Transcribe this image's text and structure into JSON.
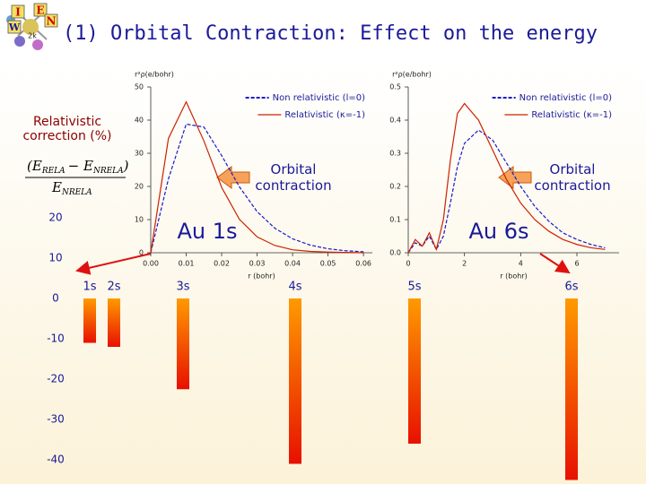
{
  "title": "(1) Orbital Contraction: Effect on the energy",
  "logo": [
    "I",
    "E",
    "N",
    "W",
    "2k"
  ],
  "chart_data": [
    {
      "type": "bar",
      "y_title": "Relativistic correction (%)",
      "formula": {
        "numerator": [
          "(E",
          "RELA",
          "− E",
          "NRELA",
          ")"
        ],
        "denominator": [
          "E",
          "NRELA"
        ]
      },
      "categories": [
        "1s",
        "2s",
        "3s",
        "4s",
        "5s",
        "6s"
      ],
      "values": [
        -11,
        -12,
        -22.5,
        -41,
        -36,
        -45
      ],
      "colors": [
        "#ff9a00",
        "#e81000"
      ],
      "ylim": [
        -45,
        26
      ],
      "yticks": [
        20,
        10,
        0,
        -10,
        -20,
        -30,
        -40
      ]
    },
    {
      "type": "line",
      "y_title": "r²ρ(e/bohr)",
      "x_title": "r (bohr)",
      "note": "Orbital contraction",
      "label": "Au 1s",
      "legend": "top-right",
      "x": [
        0,
        0.005,
        0.01,
        0.015,
        0.02,
        0.025,
        0.03,
        0.035,
        0.04,
        0.045,
        0.05,
        0.055,
        0.06
      ],
      "series": [
        {
          "name": "Non relativistic (l=0)",
          "color": "#1a1acc",
          "dash": true,
          "values": [
            0,
            22.3,
            38.8,
            37.9,
            29.3,
            19.9,
            12.4,
            7.4,
            4.2,
            2.3,
            1.2,
            0.6,
            0.3
          ]
        },
        {
          "name": "Relativistic (κ=-1)",
          "color": "#cc2200",
          "dash": false,
          "values": [
            0,
            34.5,
            45.5,
            33.7,
            19.7,
            10.1,
            4.8,
            2.2,
            0.9,
            0.4,
            0.2,
            0.1,
            0
          ]
        }
      ],
      "xlim": [
        0,
        0.0625
      ],
      "ylim": [
        0,
        50
      ],
      "xticks": [
        {
          "value": 0,
          "label": "0.00"
        },
        {
          "value": 0.01,
          "label": "0.01"
        },
        {
          "value": 0.02,
          "label": "0.02"
        },
        {
          "value": 0.03,
          "label": "0.03"
        },
        {
          "value": 0.04,
          "label": "0.04"
        },
        {
          "value": 0.05,
          "label": "0.05"
        },
        {
          "value": 0.06,
          "label": "0.06"
        }
      ],
      "yticks": [
        0,
        10,
        20,
        30,
        40,
        50
      ]
    },
    {
      "type": "line",
      "y_title": "r²ρ(e/bohr)",
      "x_title": "r (bohr)",
      "note": "Orbital contraction",
      "label": "Au 6s",
      "legend": "top-right",
      "x": [
        0,
        0.25,
        0.5,
        0.75,
        1,
        1.25,
        1.5,
        1.75,
        2,
        2.5,
        3,
        3.5,
        4,
        4.5,
        5,
        5.5,
        6,
        6.5,
        7
      ],
      "series": [
        {
          "name": "Non relativistic (l=0)",
          "color": "#1a1acc",
          "dash": true,
          "values": [
            0,
            0.03,
            0.02,
            0.05,
            0.01,
            0.05,
            0.15,
            0.26,
            0.33,
            0.37,
            0.34,
            0.27,
            0.2,
            0.14,
            0.095,
            0.06,
            0.04,
            0.025,
            0.015
          ]
        },
        {
          "name": "Relativistic (κ=-1)",
          "color": "#cc2200",
          "dash": false,
          "values": [
            0,
            0.04,
            0.02,
            0.06,
            0.01,
            0.1,
            0.28,
            0.42,
            0.45,
            0.4,
            0.31,
            0.22,
            0.15,
            0.1,
            0.065,
            0.04,
            0.025,
            0.015,
            0.01
          ]
        }
      ],
      "xlim": [
        0,
        7.5
      ],
      "ylim": [
        0,
        0.5
      ],
      "xticks": [
        0,
        2,
        4,
        6
      ],
      "yticks": [
        {
          "value": 0,
          "label": "0.0"
        },
        0.1,
        0.2,
        0.3,
        0.4,
        0.5
      ]
    }
  ]
}
